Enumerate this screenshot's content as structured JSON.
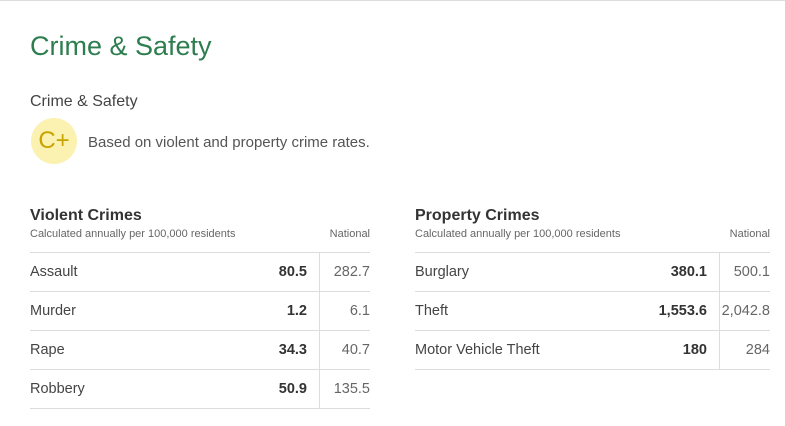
{
  "header": {
    "title": "Crime & Safety",
    "subtitle": "Crime & Safety",
    "grade": "C+",
    "grade_description": "Based on violent and property crime rates."
  },
  "colors": {
    "title": "#2e7d4f",
    "grade_bg": "#fbf1b0",
    "grade_text": "#c9a400"
  },
  "violent": {
    "title": "Violent Crimes",
    "caption": "Calculated annually per 100,000 residents",
    "national_label": "National",
    "rows": [
      {
        "label": "Assault",
        "value": "80.5",
        "national": "282.7"
      },
      {
        "label": "Murder",
        "value": "1.2",
        "national": "6.1"
      },
      {
        "label": "Rape",
        "value": "34.3",
        "national": "40.7"
      },
      {
        "label": "Robbery",
        "value": "50.9",
        "national": "135.5"
      }
    ]
  },
  "property": {
    "title": "Property Crimes",
    "caption": "Calculated annually per 100,000 residents",
    "national_label": "National",
    "rows": [
      {
        "label": "Burglary",
        "value": "380.1",
        "national": "500.1"
      },
      {
        "label": "Theft",
        "value": "1,553.6",
        "national": "2,042.8"
      },
      {
        "label": "Motor Vehicle Theft",
        "value": "180",
        "national": "284"
      }
    ]
  }
}
